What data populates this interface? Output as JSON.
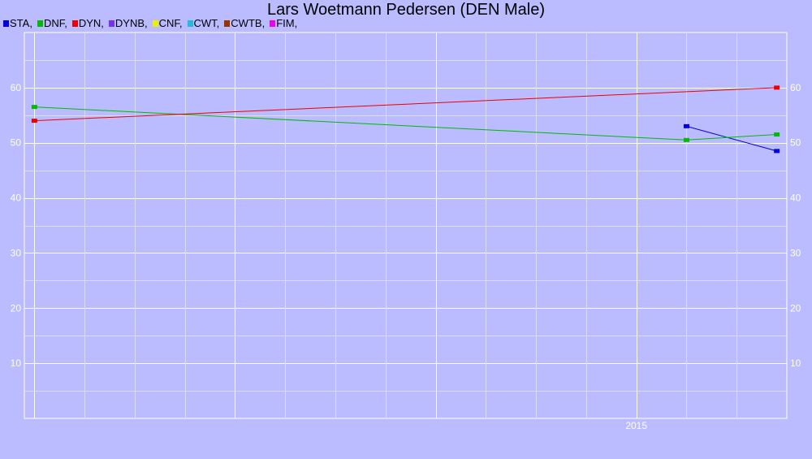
{
  "chart_data": {
    "type": "line",
    "title": "Lars Woetmann Pedersen (DEN Male)",
    "xlabel": "",
    "ylabel": "",
    "ylim": [
      0,
      70
    ],
    "y_ticks": [
      10,
      20,
      30,
      40,
      50,
      60
    ],
    "x_tick_labels": [
      {
        "x": 2015.0,
        "label": "2015"
      }
    ],
    "legend": {
      "placement": "top-left",
      "entries": [
        {
          "label": "STA,",
          "color": "#0000dd"
        },
        {
          "label": "DNF,",
          "color": "#00bb00"
        },
        {
          "label": "DYN,",
          "color": "#ee0000"
        },
        {
          "label": "DYNB,",
          "color": "#7733ee"
        },
        {
          "label": "CNF,",
          "color": "#eeee00"
        },
        {
          "label": "CWT,",
          "color": "#22bbdd"
        },
        {
          "label": "CWTB,",
          "color": "#993300"
        },
        {
          "label": "FIM,",
          "color": "#ee00ee"
        }
      ]
    },
    "series": [
      {
        "name": "STA",
        "color": "#0000dd",
        "points": [
          {
            "x": 2015.25,
            "y": 53.0
          },
          {
            "x": 2015.7,
            "y": 48.5
          }
        ]
      },
      {
        "name": "DNF",
        "color": "#00bb00",
        "points": [
          {
            "x": 2012.0,
            "y": 56.5
          },
          {
            "x": 2015.25,
            "y": 50.5
          },
          {
            "x": 2015.7,
            "y": 51.5
          }
        ]
      },
      {
        "name": "DYN",
        "color": "#ee0000",
        "points": [
          {
            "x": 2012.0,
            "y": 54.0
          },
          {
            "x": 2015.7,
            "y": 60.0
          }
        ]
      }
    ]
  }
}
